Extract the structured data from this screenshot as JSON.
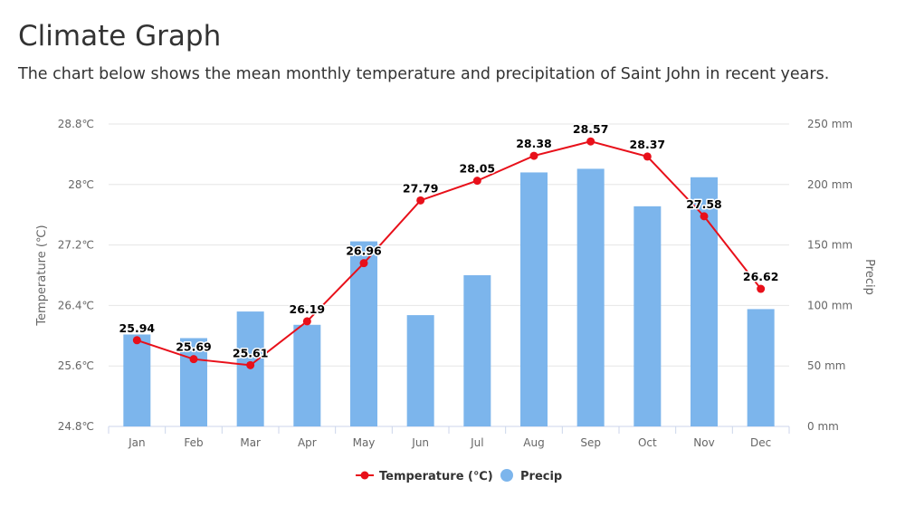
{
  "page": {
    "title": "Climate Graph",
    "subtitle": "The chart below shows the mean monthly temperature and precipitation of Saint John in recent years."
  },
  "chart_data": {
    "type": "bar+line",
    "categories": [
      "Jan",
      "Feb",
      "Mar",
      "Apr",
      "May",
      "Jun",
      "Jul",
      "Aug",
      "Sep",
      "Oct",
      "Nov",
      "Dec"
    ],
    "series": [
      {
        "name": "Precip",
        "type": "bar",
        "axis": "right",
        "color": "#7cb5ec",
        "values": [
          76,
          73,
          95,
          84,
          153,
          92,
          125,
          210,
          213,
          182,
          206,
          97
        ]
      },
      {
        "name": "Temperature (℃)",
        "type": "line",
        "axis": "left",
        "color": "#e8101a",
        "values": [
          25.94,
          25.69,
          25.61,
          26.19,
          26.96,
          27.79,
          28.05,
          28.38,
          28.57,
          28.37,
          27.58,
          26.62
        ],
        "labels": [
          "25.94",
          "25.69",
          "25.61",
          "26.19",
          "26.96",
          "27.79",
          "28.05",
          "28.38",
          "28.57",
          "28.37",
          "27.58",
          "26.62"
        ]
      }
    ],
    "y_left": {
      "label": "Temperature (℃)",
      "min": 24.8,
      "max": 28.8,
      "ticks": [
        24.8,
        25.6,
        26.4,
        27.2,
        28.0,
        28.8
      ],
      "tick_labels": [
        "24.8℃",
        "25.6℃",
        "26.4℃",
        "27.2℃",
        "28℃",
        "28.8℃"
      ]
    },
    "y_right": {
      "label": "Precip",
      "min": 0,
      "max": 250,
      "ticks": [
        0,
        50,
        100,
        150,
        200,
        250
      ],
      "tick_labels": [
        "0 mm",
        "50 mm",
        "100 mm",
        "150 mm",
        "200 mm",
        "250 mm"
      ]
    },
    "legend": {
      "position": "bottom-center",
      "items": [
        "Temperature (℃)",
        "Precip"
      ]
    },
    "grid": true
  }
}
